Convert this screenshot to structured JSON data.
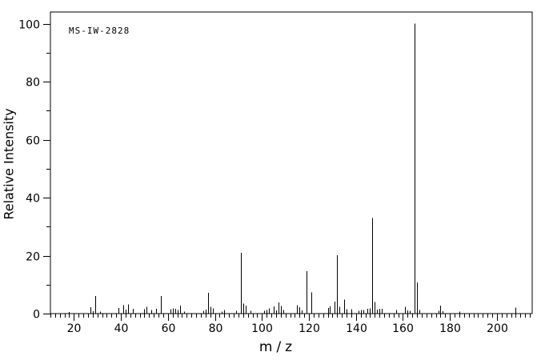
{
  "chart_data": {
    "type": "bar",
    "subtype": "mass_spectrum_stick",
    "title": "MS-IW-2828",
    "xlabel": "m/z",
    "ylabel": "Relative Intensity",
    "xlim": [
      10,
      215
    ],
    "ylim": [
      0,
      104
    ],
    "grid": false,
    "frame": true,
    "line_color": "#000000",
    "background_color": "#ffffff",
    "x_major_ticks": [
      20,
      40,
      60,
      80,
      100,
      120,
      140,
      160,
      180,
      200
    ],
    "x_minor_tick_step": 2,
    "y_major_ticks": [
      0,
      20,
      40,
      60,
      80,
      100
    ],
    "y_minor_tick_step": 10,
    "peaks_format": [
      "mz",
      "relative_intensity"
    ],
    "peaks": [
      [
        18,
        0.6
      ],
      [
        27,
        2.2
      ],
      [
        28,
        0.8
      ],
      [
        29,
        6.1
      ],
      [
        31,
        0.7
      ],
      [
        39,
        2.0
      ],
      [
        41,
        2.9
      ],
      [
        42,
        1.4
      ],
      [
        43,
        3.2
      ],
      [
        45,
        1.6
      ],
      [
        50,
        1.5
      ],
      [
        51,
        2.3
      ],
      [
        53,
        1.3
      ],
      [
        55,
        1.7
      ],
      [
        57,
        6.1
      ],
      [
        61,
        1.5
      ],
      [
        62,
        1.8
      ],
      [
        63,
        1.6
      ],
      [
        64,
        1.2
      ],
      [
        65,
        2.8
      ],
      [
        67,
        0.7
      ],
      [
        75,
        0.9
      ],
      [
        76,
        1.4
      ],
      [
        77,
        7.2
      ],
      [
        78,
        2.3
      ],
      [
        79,
        1.8
      ],
      [
        83,
        0.7
      ],
      [
        84,
        1.2
      ],
      [
        89,
        0.9
      ],
      [
        91,
        21.0
      ],
      [
        92,
        3.4
      ],
      [
        93,
        2.7
      ],
      [
        95,
        1.0
      ],
      [
        101,
        0.9
      ],
      [
        102,
        1.3
      ],
      [
        103,
        1.8
      ],
      [
        105,
        2.5
      ],
      [
        106,
        1.1
      ],
      [
        107,
        3.9
      ],
      [
        108,
        2.6
      ],
      [
        109,
        1.2
      ],
      [
        115,
        2.9
      ],
      [
        116,
        2.2
      ],
      [
        117,
        1.1
      ],
      [
        119,
        14.6
      ],
      [
        121,
        7.3
      ],
      [
        128,
        2.0
      ],
      [
        129,
        2.5
      ],
      [
        131,
        4.1
      ],
      [
        132,
        20.1
      ],
      [
        133,
        2.3
      ],
      [
        135,
        4.8
      ],
      [
        136,
        1.5
      ],
      [
        138,
        1.5
      ],
      [
        141,
        1.0
      ],
      [
        142,
        1.2
      ],
      [
        143,
        1.3
      ],
      [
        145,
        1.7
      ],
      [
        146,
        1.8
      ],
      [
        147,
        33.0
      ],
      [
        148,
        4.0
      ],
      [
        149,
        1.4
      ],
      [
        150,
        1.7
      ],
      [
        151,
        1.7
      ],
      [
        157,
        1.2
      ],
      [
        161,
        2.4
      ],
      [
        162,
        1.1
      ],
      [
        163,
        0.9
      ],
      [
        165,
        100.0
      ],
      [
        166,
        10.8
      ],
      [
        167,
        1.2
      ],
      [
        175,
        0.9
      ],
      [
        176,
        2.8
      ],
      [
        177,
        0.8
      ],
      [
        184,
        0.7
      ],
      [
        208,
        2.1
      ]
    ]
  }
}
